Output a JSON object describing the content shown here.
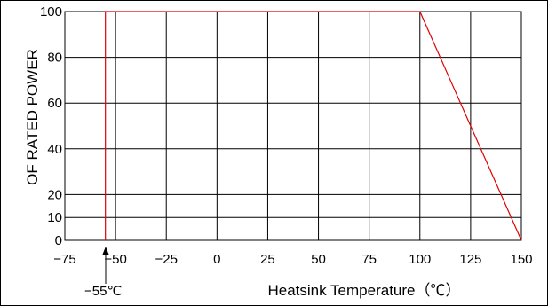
{
  "chart_data": {
    "type": "line",
    "title": "",
    "xlabel": "Heatsink Temperature（℃）",
    "ylabel": "OF RATED POWER",
    "xlim": [
      -75,
      150
    ],
    "ylim": [
      0,
      100
    ],
    "x_ticks": [
      -75,
      -50,
      -25,
      0,
      25,
      50,
      75,
      100,
      125,
      150
    ],
    "x_tick_labels": [
      "−75",
      "−50",
      "−25",
      "0",
      "25",
      "50",
      "75",
      "100",
      "125",
      "150"
    ],
    "y_ticks": [
      0,
      10,
      20,
      40,
      60,
      80,
      100
    ],
    "y_tick_labels": [
      "0",
      "10",
      "20",
      "40",
      "60",
      "80",
      "100"
    ],
    "grid": true,
    "series": [
      {
        "x": [
          -55,
          -55,
          100,
          150
        ],
        "y": [
          0,
          100,
          100,
          0
        ],
        "color": "#e00000"
      }
    ],
    "annotations": [
      {
        "text": "−55℃",
        "x": -55
      }
    ]
  }
}
